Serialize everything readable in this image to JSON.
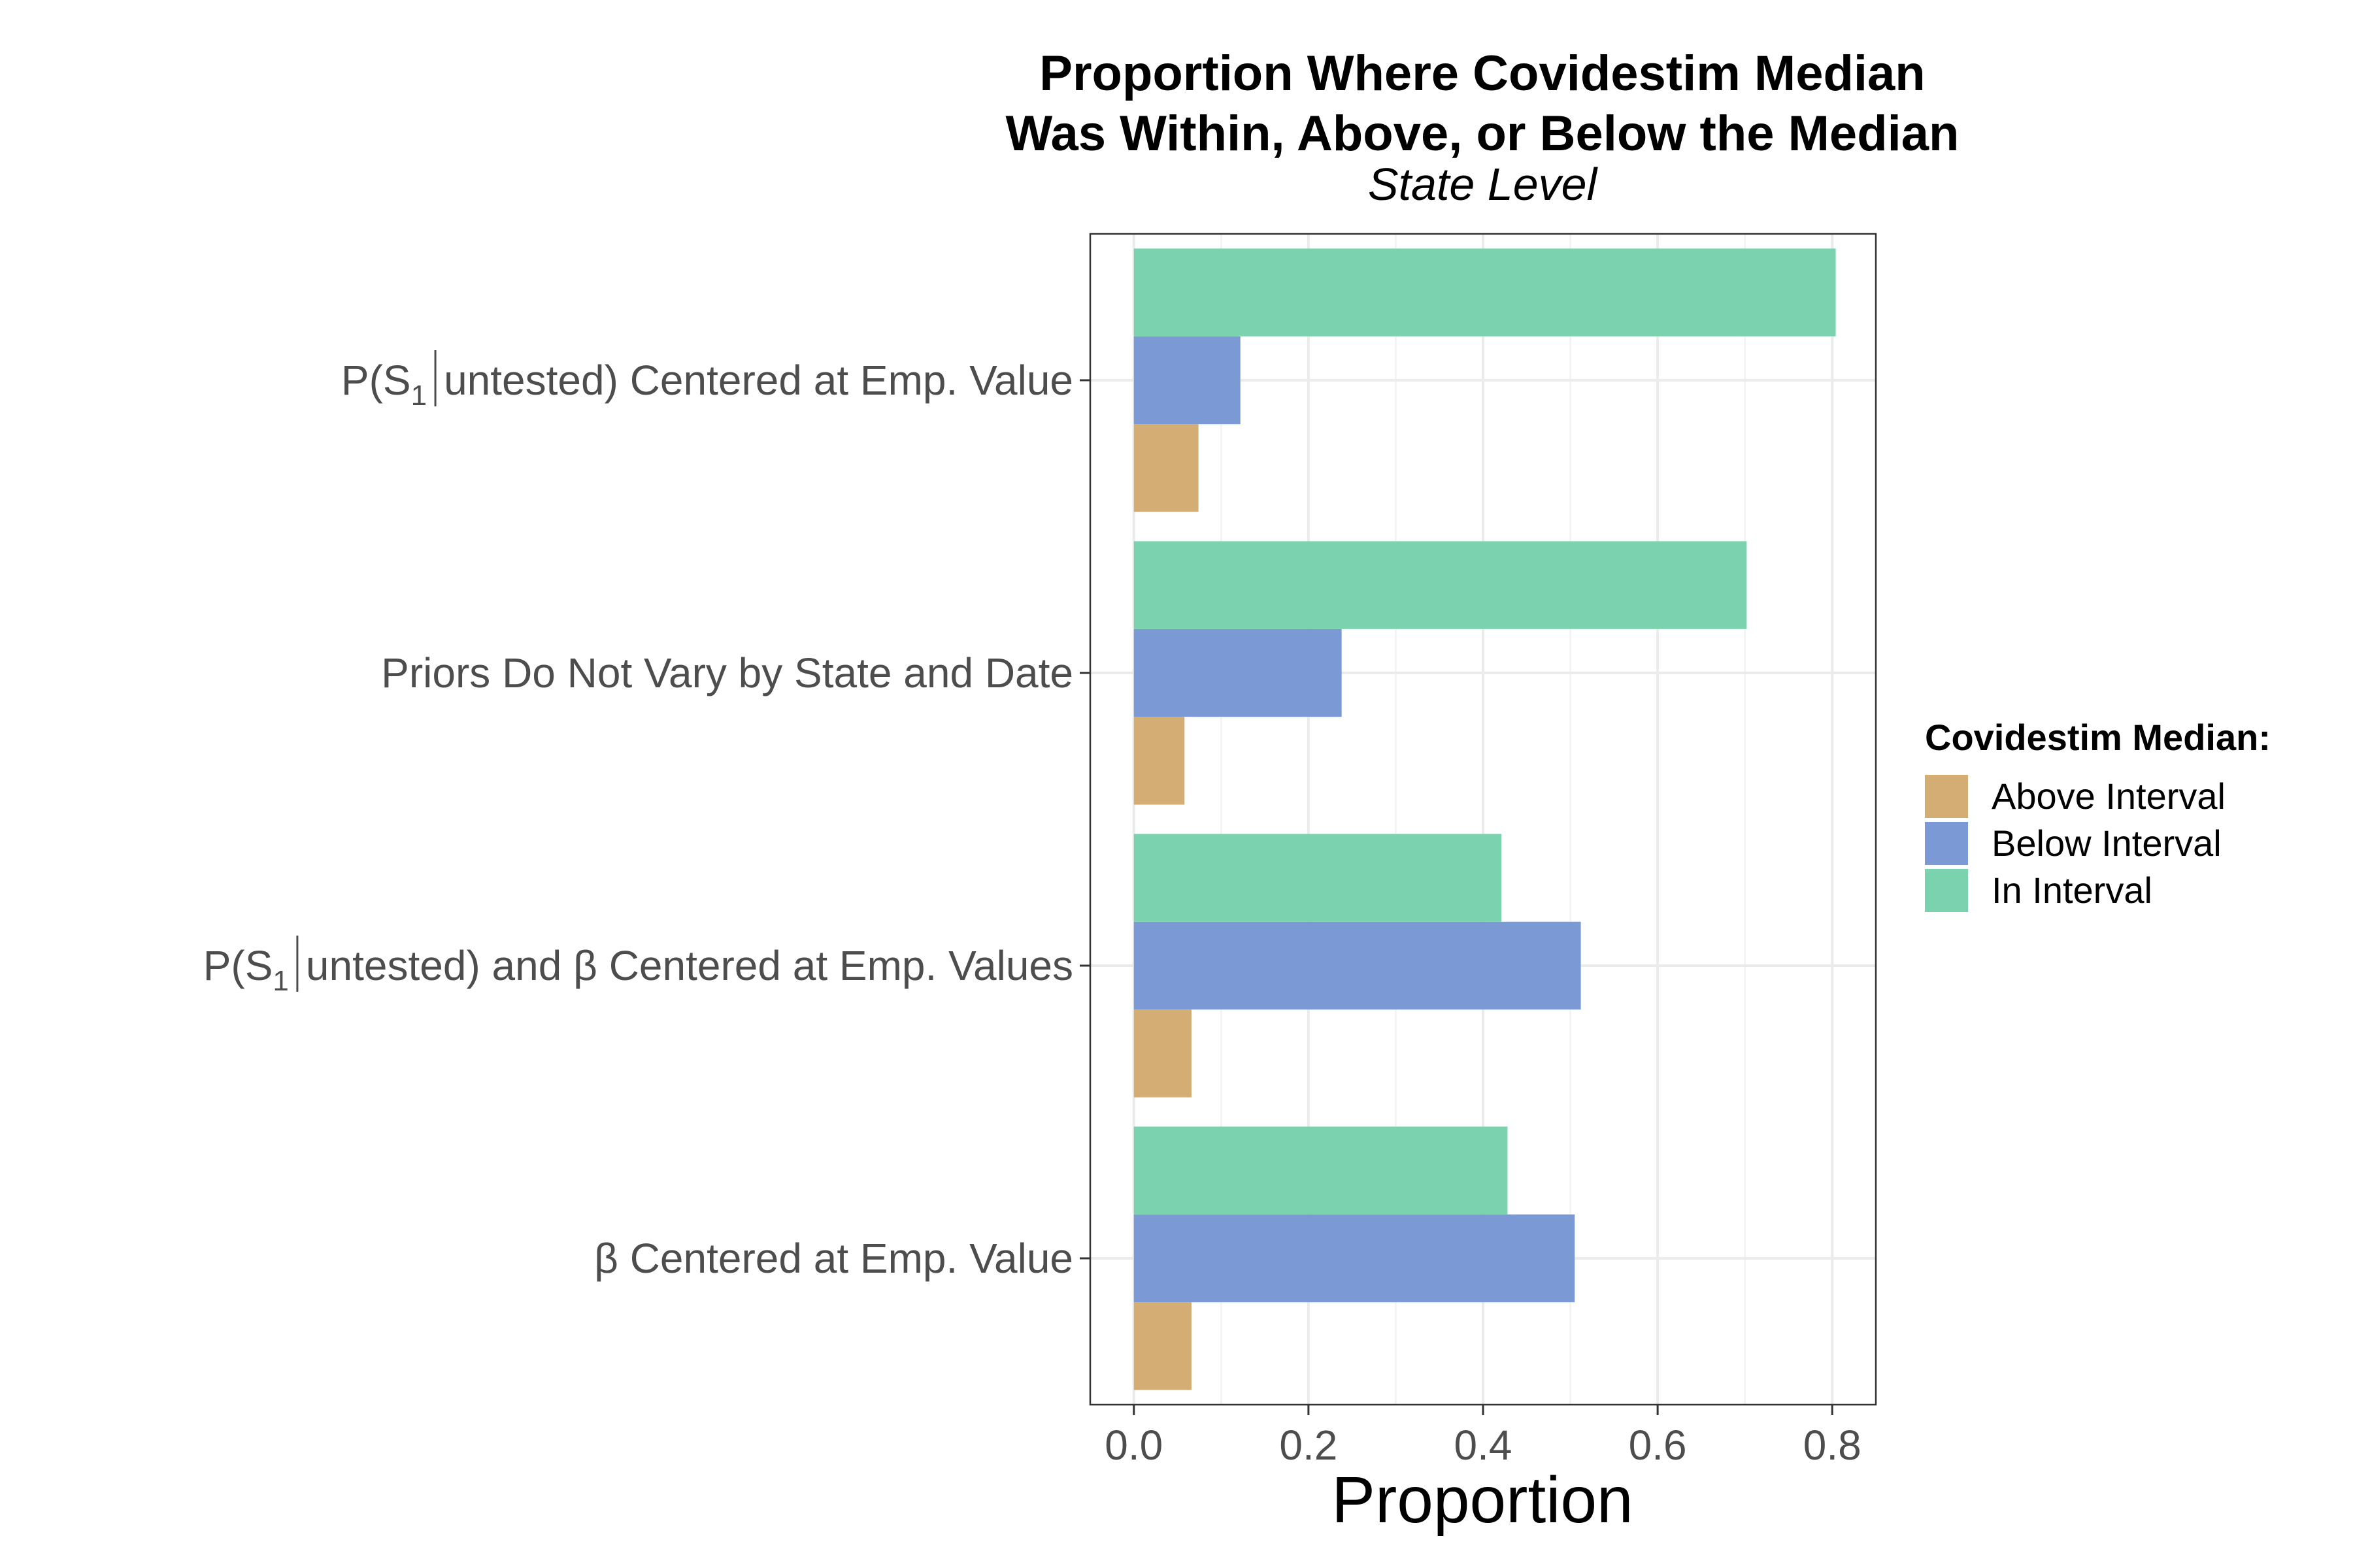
{
  "chart_data": {
    "type": "bar",
    "orientation": "horizontal",
    "title_line1": "Proportion Where Covidestim Median",
    "title_line2": "Was Within, Above, or Below the Median",
    "subtitle": "State Level",
    "xlabel": "Proportion",
    "ylabel": "",
    "xlim": [
      -0.05,
      0.85
    ],
    "x_ticks": [
      0.0,
      0.2,
      0.4,
      0.6,
      0.8
    ],
    "x_tick_labels": [
      "0.0",
      "0.2",
      "0.4",
      "0.6",
      "0.8"
    ],
    "grid": true,
    "categories": [
      {
        "id": "c1",
        "parts": {
          "pre": "P(S",
          "sub": "1",
          "mid": "untested)",
          "post": " Centered at Emp. Value"
        }
      },
      {
        "id": "c2",
        "plain": "Priors Do Not Vary by State and Date"
      },
      {
        "id": "c3",
        "parts": {
          "pre": "P(S",
          "sub": "1",
          "mid": "untested)",
          "post": " and β Centered at Emp. Values"
        }
      },
      {
        "id": "c4",
        "plain": "β Centered at Emp. Value"
      }
    ],
    "legend": {
      "title": "Covidestim Median:",
      "position": "right"
    },
    "series": [
      {
        "name": "Above Interval",
        "color": "#d4ad74",
        "values": [
          0.074,
          0.058,
          0.066,
          0.066
        ]
      },
      {
        "name": "Below Interval",
        "color": "#7b99d4",
        "values": [
          0.122,
          0.238,
          0.512,
          0.505
        ]
      },
      {
        "name": "In Interval",
        "color": "#7ad2af",
        "values": [
          0.804,
          0.702,
          0.421,
          0.428
        ]
      }
    ]
  }
}
